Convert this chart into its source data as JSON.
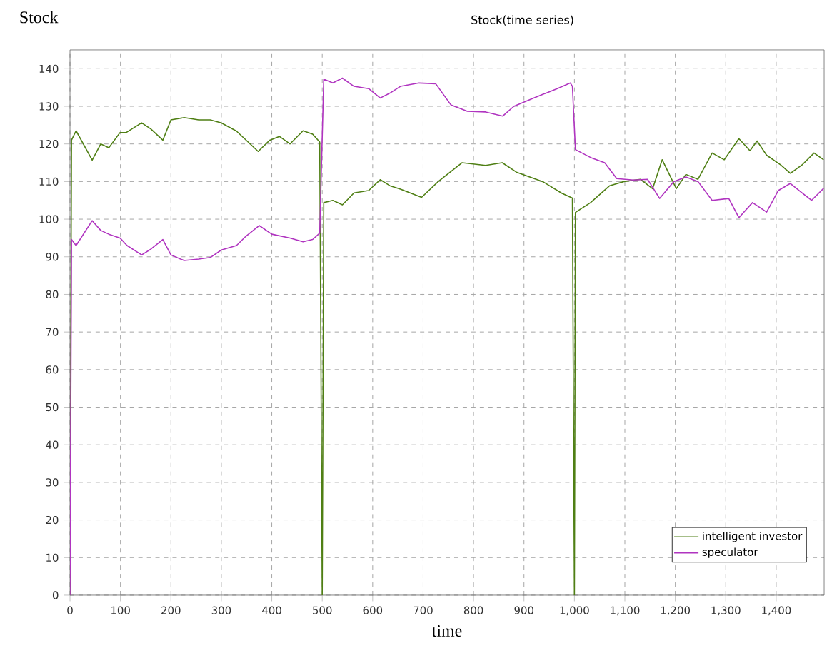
{
  "chart_data": {
    "type": "line",
    "title": "Stock(time series)",
    "xlabel": "time",
    "ylabel": "Stock",
    "xlim": [
      0,
      1495
    ],
    "ylim": [
      0,
      145
    ],
    "xticks": [
      0,
      100,
      200,
      300,
      400,
      500,
      600,
      700,
      800,
      900,
      {
        "value": 1000,
        "label": "1,000"
      },
      {
        "value": 1100,
        "label": "1,100"
      },
      {
        "value": 1200,
        "label": "1,200"
      },
      {
        "value": 1300,
        "label": "1,300"
      },
      {
        "value": 1400,
        "label": "1,400"
      }
    ],
    "yticks": [
      0,
      10,
      20,
      30,
      40,
      50,
      60,
      70,
      80,
      90,
      100,
      110,
      120,
      130,
      140
    ],
    "grid": true,
    "legend": "bottom right",
    "marker": "none",
    "line_style": "solid",
    "series": [
      {
        "name": "intelligent investor",
        "color": "#4f7f14",
        "x": [
          0,
          3,
          12,
          44,
          61,
          77,
          99,
          111,
          142,
          160,
          184,
          200,
          226,
          255,
          278,
          300,
          330,
          373,
          396,
          415,
          436,
          462,
          481,
          495,
          500,
          503,
          521,
          540,
          563,
          592,
          615,
          634,
          655,
          697,
          730,
          777,
          824,
          857,
          885,
          937,
          975,
          996,
          1000,
          1002,
          1032,
          1070,
          1098,
          1131,
          1155,
          1174,
          1202,
          1221,
          1245,
          1273,
          1297,
          1326,
          1348,
          1362,
          1381,
          1409,
          1428,
          1451,
          1475,
          1494
        ],
        "values": [
          0,
          121,
          123.5,
          115.7,
          120,
          119,
          123,
          123,
          125.6,
          124,
          121,
          126.4,
          127,
          126.4,
          126.4,
          125.6,
          123.4,
          118,
          121,
          122,
          120,
          123.5,
          122.6,
          120.5,
          0,
          104.4,
          105,
          103.8,
          107,
          107.6,
          110.5,
          108.9,
          108,
          105.8,
          110,
          115,
          114.3,
          115,
          112.5,
          110,
          106.9,
          105.6,
          0,
          101.8,
          104.4,
          108.9,
          110,
          110.6,
          108.1,
          115.8,
          108.1,
          111.9,
          110.6,
          117.6,
          115.8,
          121.4,
          118.2,
          120.8,
          117,
          114.4,
          112.2,
          114.4,
          117.6,
          115.8
        ]
      },
      {
        "name": "speculator",
        "color": "#b034c0",
        "x": [
          0,
          3,
          12,
          44,
          61,
          77,
          99,
          113,
          142,
          160,
          184,
          200,
          226,
          255,
          278,
          300,
          330,
          349,
          375,
          400,
          436,
          462,
          481,
          495,
          503,
          521,
          540,
          563,
          592,
          615,
          634,
          655,
          692,
          725,
          755,
          787,
          824,
          858,
          880,
          919,
          966,
          992,
          996,
          1002,
          1032,
          1060,
          1084,
          1117,
          1145,
          1169,
          1197,
          1221,
          1245,
          1273,
          1306,
          1326,
          1353,
          1381,
          1404,
          1428,
          1451,
          1470,
          1494
        ],
        "values": [
          0,
          94.6,
          93,
          99.6,
          97,
          96,
          95,
          93,
          90.5,
          92,
          94.6,
          90.5,
          89,
          89.4,
          89.8,
          91.8,
          93,
          95.5,
          98.3,
          96,
          95,
          94,
          94.6,
          96.3,
          137.2,
          136.2,
          137.5,
          135.3,
          134.7,
          132.2,
          133.5,
          135.3,
          136.2,
          136,
          130.4,
          128.7,
          128.5,
          127.4,
          130,
          132.2,
          134.7,
          136.2,
          135.3,
          118.5,
          116.4,
          115,
          110.8,
          110.4,
          110.6,
          105.5,
          110,
          111.2,
          110,
          105,
          105.5,
          100.4,
          104.4,
          101.9,
          107.6,
          109.5,
          107,
          105,
          108.2
        ]
      }
    ]
  }
}
